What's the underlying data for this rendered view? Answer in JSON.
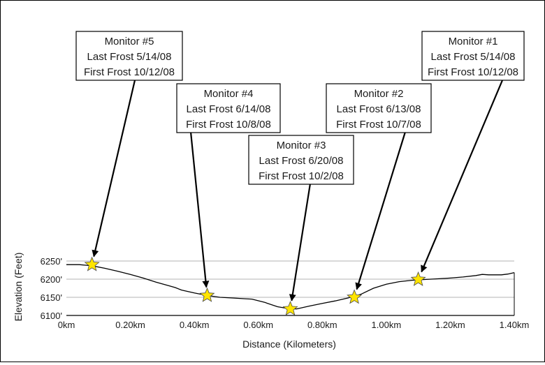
{
  "chart_data": {
    "type": "line",
    "title": "",
    "xlabel": "Distance (Kilometers)",
    "ylabel": "Elevation (Feet)",
    "xlim": [
      0,
      1.4
    ],
    "ylim": [
      6100,
      6250
    ],
    "x_tick_labels": [
      "0km",
      "0.20km",
      "0.40km",
      "0.60km",
      "0.80km",
      "1.00km",
      "1.20km",
      "1.40km"
    ],
    "y_tick_labels": [
      "6100'",
      "6150'",
      "6200'",
      "6250'"
    ],
    "y_ticks": [
      6100,
      6150,
      6200,
      6250
    ],
    "grid": "horizontal",
    "series": [
      {
        "x": [
          0,
          0.04,
          0.08,
          0.12,
          0.16,
          0.2,
          0.24,
          0.28,
          0.32,
          0.34,
          0.36,
          0.4,
          0.44,
          0.48,
          0.52,
          0.56,
          0.58,
          0.62,
          0.66,
          0.7,
          0.72,
          0.76,
          0.8,
          0.84,
          0.88,
          0.92,
          0.96,
          1.0,
          1.04,
          1.08,
          1.12,
          1.16,
          1.2,
          1.24,
          1.28,
          1.3,
          1.32,
          1.36,
          1.38,
          1.4
        ],
        "y": [
          6240,
          6240,
          6237,
          6230,
          6222,
          6213,
          6203,
          6192,
          6182,
          6177,
          6170,
          6162,
          6155,
          6150,
          6148,
          6146,
          6145,
          6136,
          6124,
          6118,
          6118,
          6126,
          6133,
          6140,
          6148,
          6158,
          6175,
          6186,
          6193,
          6197,
          6199,
          6201,
          6203,
          6206,
          6210,
          6213,
          6212,
          6212,
          6214,
          6218
        ]
      }
    ],
    "monitors": [
      {
        "name": "Monitor #5",
        "last_frost": "Last Frost 5/14/08",
        "first_frost": "First Frost 10/12/08",
        "x": 0.08,
        "y": 6240
      },
      {
        "name": "Monitor #4",
        "last_frost": "Last Frost 6/14/08",
        "first_frost": "First Frost 10/8/08",
        "x": 0.44,
        "y": 6155
      },
      {
        "name": "Monitor #3",
        "last_frost": "Last Frost 6/20/08",
        "first_frost": "First Frost 10/2/08",
        "x": 0.7,
        "y": 6118
      },
      {
        "name": "Monitor #2",
        "last_frost": "Last Frost 6/13/08",
        "first_frost": "First Frost 10/7/08",
        "x": 0.9,
        "y": 6150
      },
      {
        "name": "Monitor #1",
        "last_frost": "Last Frost 5/14/08",
        "first_frost": "First Frost 10/12/08",
        "x": 1.1,
        "y": 6199
      }
    ],
    "colors": {
      "profile_line": "#000000",
      "gridline": "#9a9a9a",
      "star_fill": "#ffe400",
      "star_stroke": "#4a4a4a",
      "box_border": "#000000",
      "arrow": "#000000"
    }
  }
}
